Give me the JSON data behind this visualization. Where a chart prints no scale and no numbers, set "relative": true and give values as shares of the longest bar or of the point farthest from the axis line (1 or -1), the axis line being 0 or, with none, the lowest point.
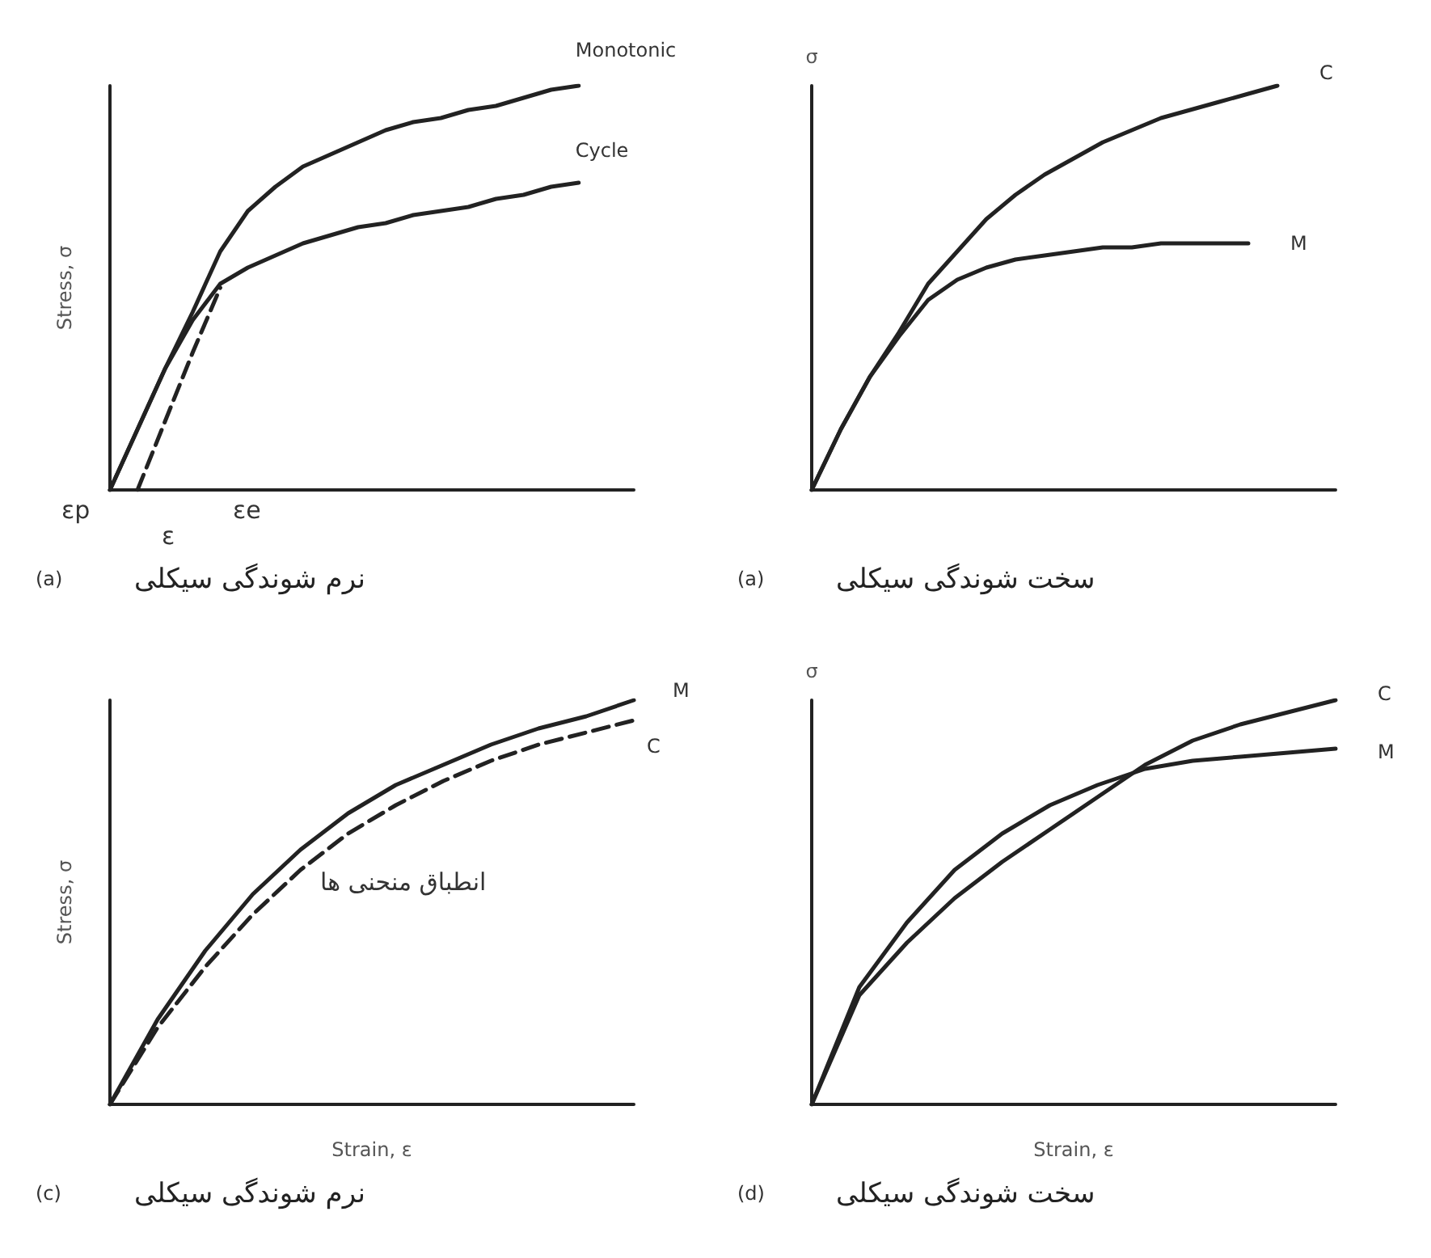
{
  "chart_data": [
    {
      "type": "line",
      "title": "نرم شوندگی سیکلی",
      "ylabel": "Stress, σ",
      "relative": true,
      "annotations": [
        "(a)",
        "εp",
        "εe",
        "ε"
      ],
      "marker": "none",
      "categories": [
        null,
        null,
        null,
        null,
        null,
        null,
        null,
        null,
        null,
        null,
        null,
        null,
        null,
        null,
        null,
        null,
        null,
        null,
        null,
        null
      ],
      "series": [
        {
          "name": "Monotonic",
          "color": "#222222",
          "values": [
            0,
            0.15,
            0.3,
            0.44,
            0.59,
            0.69,
            0.75,
            0.8,
            0.83,
            0.86,
            0.89,
            0.91,
            0.92,
            0.94,
            0.95,
            0.97,
            0.99,
            1.0,
            null,
            null
          ]
        },
        {
          "name": "Cycle",
          "color": "#222222",
          "values": [
            0,
            0.15,
            0.3,
            0.42,
            0.51,
            0.55,
            0.58,
            0.61,
            0.63,
            0.65,
            0.66,
            0.68,
            0.69,
            0.7,
            0.72,
            0.73,
            0.75,
            0.76,
            null,
            null
          ]
        },
        {
          "color": "#222222",
          "line_style": "dashed",
          "values": [
            null,
            0,
            0.17,
            0.34,
            0.5,
            null,
            null,
            null,
            null,
            null,
            null,
            null,
            null,
            null,
            null,
            null,
            null,
            null,
            null,
            null
          ]
        }
      ]
    },
    {
      "type": "line",
      "title": "سخت شوندگی سیکلی",
      "ylabel": "σ",
      "relative": true,
      "annotations": [
        "(a)"
      ],
      "marker": "none",
      "categories": [
        null,
        null,
        null,
        null,
        null,
        null,
        null,
        null,
        null,
        null,
        null,
        null,
        null,
        null,
        null,
        null,
        null,
        null,
        null
      ],
      "series": [
        {
          "name": "C",
          "color": "#222222",
          "values": [
            0,
            0.15,
            0.28,
            0.39,
            0.51,
            0.59,
            0.67,
            0.73,
            0.78,
            0.82,
            0.86,
            0.89,
            0.92,
            0.94,
            0.96,
            0.98,
            1.0,
            null,
            null
          ]
        },
        {
          "name": "M",
          "color": "#222222",
          "values": [
            0,
            0.15,
            0.28,
            0.38,
            0.47,
            0.52,
            0.55,
            0.57,
            0.58,
            0.59,
            0.6,
            0.6,
            0.61,
            0.61,
            0.61,
            0.61,
            null,
            null,
            null
          ]
        }
      ]
    },
    {
      "type": "line",
      "title": "نرم شوندگی سیکلی",
      "xlabel": "Strain, ε",
      "ylabel": "Stress, σ",
      "relative": true,
      "annotations": [
        "(c)",
        "انطباق منحنی ها"
      ],
      "marker": "none",
      "categories": [
        null,
        null,
        null,
        null,
        null,
        null,
        null,
        null,
        null,
        null,
        null,
        null
      ],
      "series": [
        {
          "name": "M",
          "color": "#222222",
          "values": [
            0,
            0.21,
            0.38,
            0.52,
            0.63,
            0.72,
            0.79,
            0.84,
            0.89,
            0.93,
            0.96,
            1.0
          ]
        },
        {
          "name": "C",
          "color": "#222222",
          "line_style": "dashed",
          "values": [
            0,
            0.19,
            0.34,
            0.47,
            0.58,
            0.67,
            0.74,
            0.8,
            0.85,
            0.89,
            0.92,
            0.95
          ]
        }
      ]
    },
    {
      "type": "line",
      "title": "سخت شوندگی سیکلی",
      "xlabel": "Strain, ε",
      "ylabel": "σ",
      "relative": true,
      "annotations": [
        "(d)"
      ],
      "marker": "none",
      "categories": [
        null,
        null,
        null,
        null,
        null,
        null,
        null,
        null,
        null,
        null,
        null,
        null
      ],
      "series": [
        {
          "name": "C",
          "color": "#222222",
          "values": [
            0,
            0.27,
            0.4,
            0.51,
            0.6,
            0.68,
            0.76,
            0.84,
            0.9,
            0.94,
            0.97,
            1.0
          ]
        },
        {
          "name": "M",
          "color": "#222222",
          "values": [
            0,
            0.29,
            0.45,
            0.58,
            0.67,
            0.74,
            0.79,
            0.83,
            0.85,
            0.86,
            0.87,
            0.88
          ]
        }
      ]
    }
  ]
}
